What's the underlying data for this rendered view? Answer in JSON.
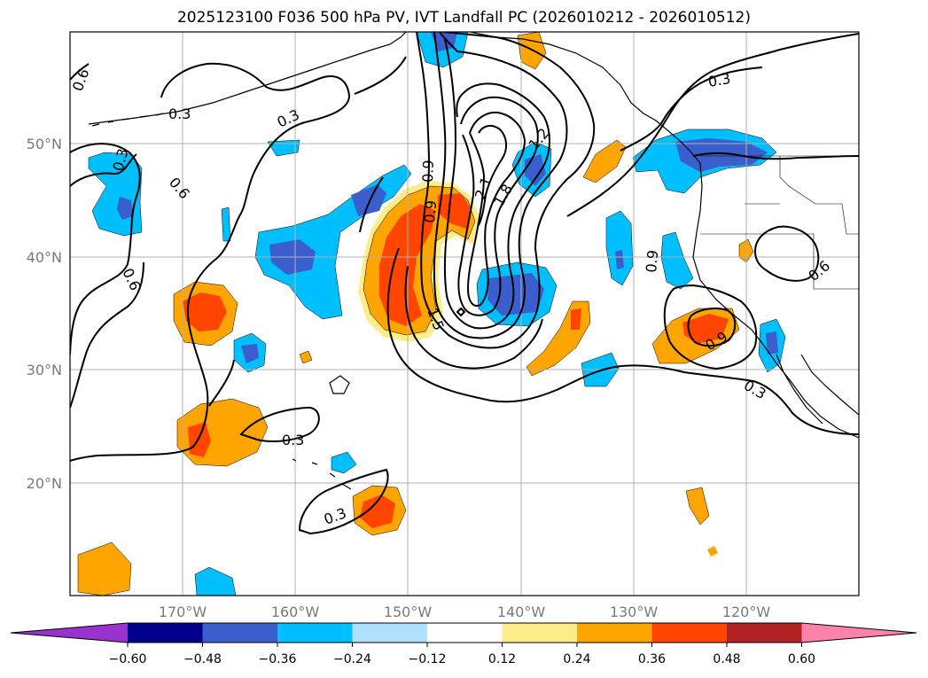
{
  "title": "2025123100 F036 500 hPa PV, IVT Landfall PC (2026010212 - 2026010512)",
  "map": {
    "lat_labels": [
      "50°N",
      "40°N",
      "30°N",
      "20°N"
    ],
    "lon_labels": [
      "170°W",
      "160°W",
      "150°W",
      "140°W",
      "130°W",
      "120°W"
    ],
    "contour_labels": [
      "0.6",
      "0.3",
      "0.3",
      "0.6",
      "0.3",
      "0.6",
      "0.9",
      "0.9",
      "2.1",
      "1.8",
      "1.2",
      "1.5",
      "0.3",
      "0.9",
      "0.6",
      "0.9",
      "0.3",
      "0.3",
      "0.3"
    ]
  },
  "colorbar": {
    "ticks": [
      "−0.60",
      "−0.48",
      "−0.36",
      "−0.24",
      "−0.12",
      "0.12",
      "0.24",
      "0.36",
      "0.48",
      "0.60"
    ],
    "colors": [
      "#9a32cd",
      "#00008b",
      "#3a5fcd",
      "#00bfff",
      "#b0e2ff",
      "#ffffff",
      "#ffec8b",
      "#ffa500",
      "#ff4500",
      "#b22222",
      "#ff82ab"
    ]
  }
}
